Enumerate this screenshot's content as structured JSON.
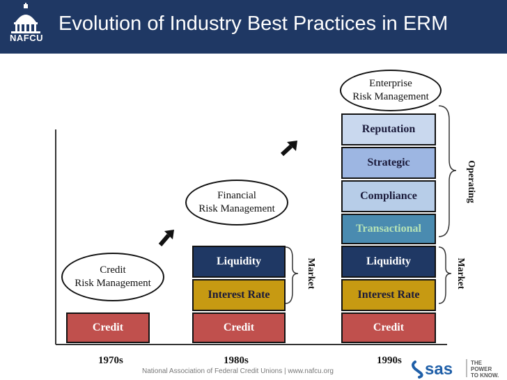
{
  "header": {
    "title": "Evolution of Industry Best Practices in ERM",
    "logo_text": "NAFCU",
    "colors": {
      "background": "#1f3864"
    }
  },
  "stages": [
    {
      "decade": "1970s",
      "ellipse": [
        "Credit",
        "Risk Management"
      ],
      "blocks": [
        "Credit"
      ]
    },
    {
      "decade": "1980s",
      "ellipse": [
        "Financial",
        "Risk Management"
      ],
      "blocks": [
        "Credit",
        "Interest Rate",
        "Liquidity"
      ],
      "bracket_label": "Market"
    },
    {
      "decade": "1990s",
      "ellipse": [
        "Enterprise",
        "Risk Management"
      ],
      "blocks": [
        "Credit",
        "Interest Rate",
        "Liquidity",
        "Transactional",
        "Compliance",
        "Strategic",
        "Reputation"
      ],
      "bracket_labels": [
        "Market",
        "Operating"
      ]
    }
  ],
  "colors": {
    "credit": "#c0504d",
    "interest_rate": "#c79a12",
    "liquidity": "#1f3864",
    "transactional": "#4a8bb0",
    "compliance": "#b7cde8",
    "strategic": "#9db6e2",
    "reputation": "#c9d8ee"
  },
  "icons": [
    "capitol-dome-icon",
    "arrow-icon",
    "sas-logo-icon"
  ],
  "footer": {
    "text": "National Association of Federal Credit Unions  |  www.nafcu.org",
    "sas_brand": "sas",
    "sas_tagline": [
      "THE",
      "POWER",
      "TO KNOW."
    ]
  }
}
